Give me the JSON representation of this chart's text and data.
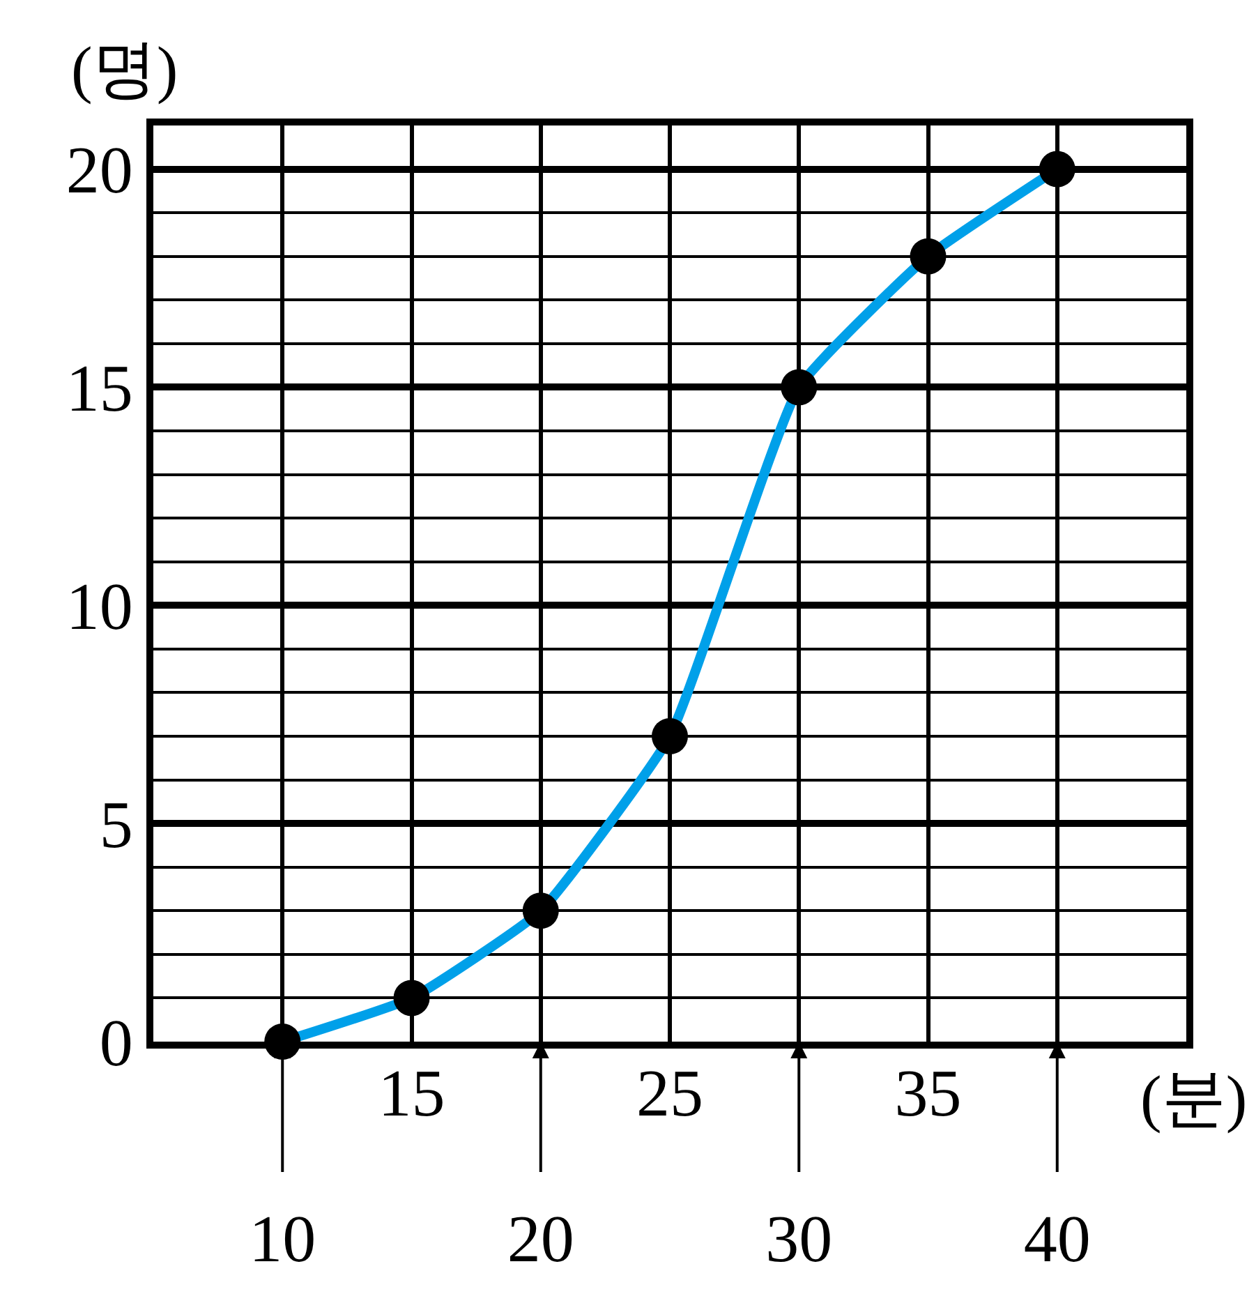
{
  "chart_data": {
    "type": "line",
    "xlabel": "(분)",
    "ylabel": "(명)",
    "x": [
      10,
      15,
      20,
      25,
      30,
      35,
      40
    ],
    "series": [
      {
        "color": "#00a0e9",
        "values": [
          0,
          1,
          3,
          7,
          15,
          18,
          20
        ]
      }
    ],
    "xlim": [
      5,
      45
    ],
    "xticks": [
      10,
      20,
      30,
      40
    ],
    "x2lim": [
      5,
      45
    ],
    "x2ticks": [
      15,
      25,
      35
    ],
    "ylim": [
      0,
      21
    ],
    "yticks": [
      0,
      5,
      10,
      15,
      20
    ],
    "grid": true,
    "marker": "circle",
    "line_style": "solid"
  }
}
